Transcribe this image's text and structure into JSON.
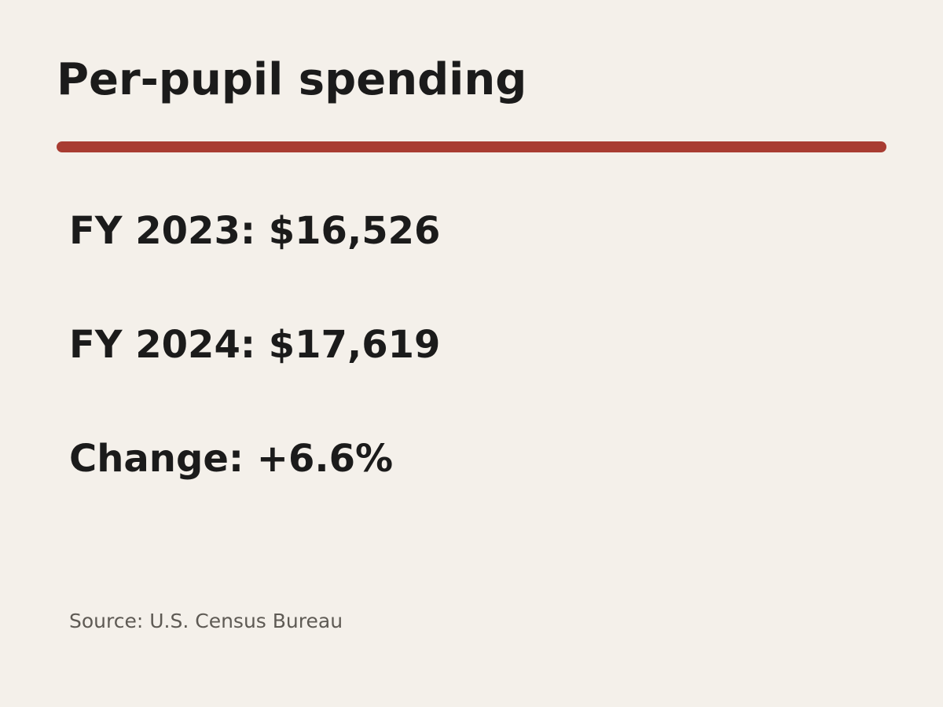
{
  "title": "Per-pupil spending",
  "accent_color": "#a83c32",
  "stats": [
    {
      "text": "FY 2023: $16,526"
    },
    {
      "text": "FY 2024: $17,619"
    },
    {
      "text": "Change: +6.6%"
    }
  ],
  "source": {
    "text": "Source: U.S. Census Bureau",
    "color": "#5e5a54"
  }
}
